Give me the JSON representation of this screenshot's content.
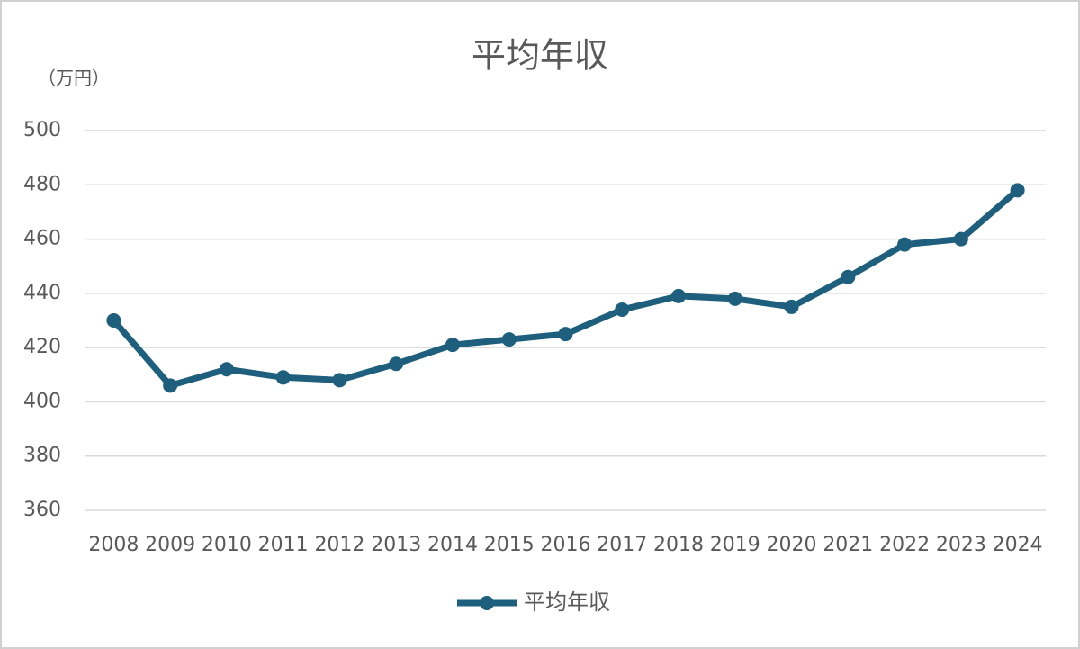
{
  "chart_data": {
    "type": "line",
    "title": "平均年収",
    "y_label": "（万円）",
    "categories": [
      "2008",
      "2009",
      "2010",
      "2011",
      "2012",
      "2013",
      "2014",
      "2015",
      "2016",
      "2017",
      "2018",
      "2019",
      "2020",
      "2021",
      "2022",
      "2023",
      "2024"
    ],
    "series": [
      {
        "name": "平均年収",
        "color": "#1d5f7c",
        "values": [
          430,
          406,
          412,
          409,
          408,
          414,
          421,
          423,
          425,
          434,
          439,
          438,
          435,
          446,
          458,
          460,
          478
        ]
      }
    ],
    "ylim": [
      360,
      500
    ],
    "yticks": [
      360,
      380,
      400,
      420,
      440,
      460,
      480,
      500
    ],
    "grid": true,
    "legend": "bottom"
  }
}
